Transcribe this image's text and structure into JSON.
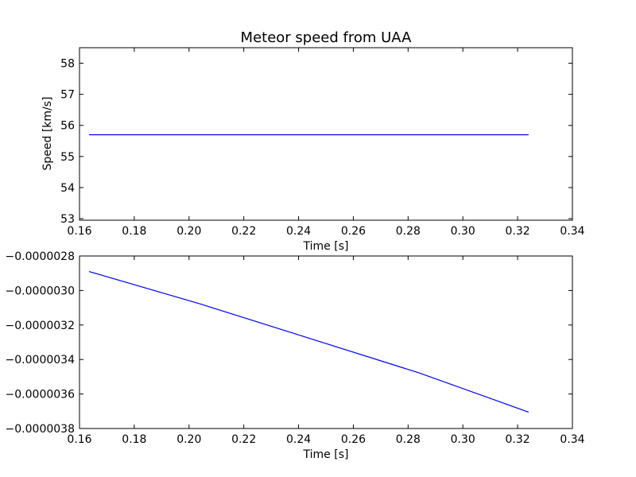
{
  "chart_data": [
    {
      "type": "line",
      "title": "Meteor speed from  UAA",
      "xlabel": "Time [s]",
      "ylabel": "Speed [km/s]",
      "xlim": [
        0.16,
        0.34
      ],
      "ylim": [
        52.95,
        58.5
      ],
      "xticks": [
        0.16,
        0.18,
        0.2,
        0.22,
        0.24,
        0.26,
        0.28,
        0.3,
        0.32,
        0.34
      ],
      "xtick_labels": [
        "0.16",
        "0.18",
        "0.20",
        "0.22",
        "0.24",
        "0.26",
        "0.28",
        "0.30",
        "0.32",
        "0.34"
      ],
      "yticks": [
        53,
        54,
        55,
        56,
        57,
        58
      ],
      "ytick_labels": [
        "53",
        "54",
        "55",
        "56",
        "57",
        "58"
      ],
      "grid": false,
      "line_color": "#0000ff",
      "series": [
        {
          "x": [
            0.1635,
            0.324
          ],
          "y": [
            55.7,
            55.7
          ]
        }
      ]
    },
    {
      "type": "line",
      "title": "",
      "xlabel": "Time [s]",
      "ylabel": "",
      "xlim": [
        0.16,
        0.34
      ],
      "ylim": [
        -3.8e-06,
        -2.8e-06
      ],
      "xticks": [
        0.16,
        0.18,
        0.2,
        0.22,
        0.24,
        0.26,
        0.28,
        0.3,
        0.32,
        0.34
      ],
      "xtick_labels": [
        "0.16",
        "0.18",
        "0.20",
        "0.22",
        "0.24",
        "0.26",
        "0.28",
        "0.30",
        "0.32",
        "0.34"
      ],
      "yticks": [
        -3.8e-06,
        -3.6e-06,
        -3.4e-06,
        -3.2e-06,
        -3e-06,
        -2.8e-06
      ],
      "ytick_labels": [
        "−0.0000038",
        "−0.0000036",
        "−0.0000034",
        "−0.0000032",
        "−0.0000030",
        "−0.0000028"
      ],
      "grid": false,
      "line_color": "#0000ff",
      "series": [
        {
          "x": [
            0.1635,
            0.2035,
            0.2435,
            0.2835,
            0.324
          ],
          "y": [
            -2.89e-06,
            -3.075e-06,
            -3.275e-06,
            -3.475e-06,
            -3.705e-06
          ]
        }
      ]
    }
  ]
}
